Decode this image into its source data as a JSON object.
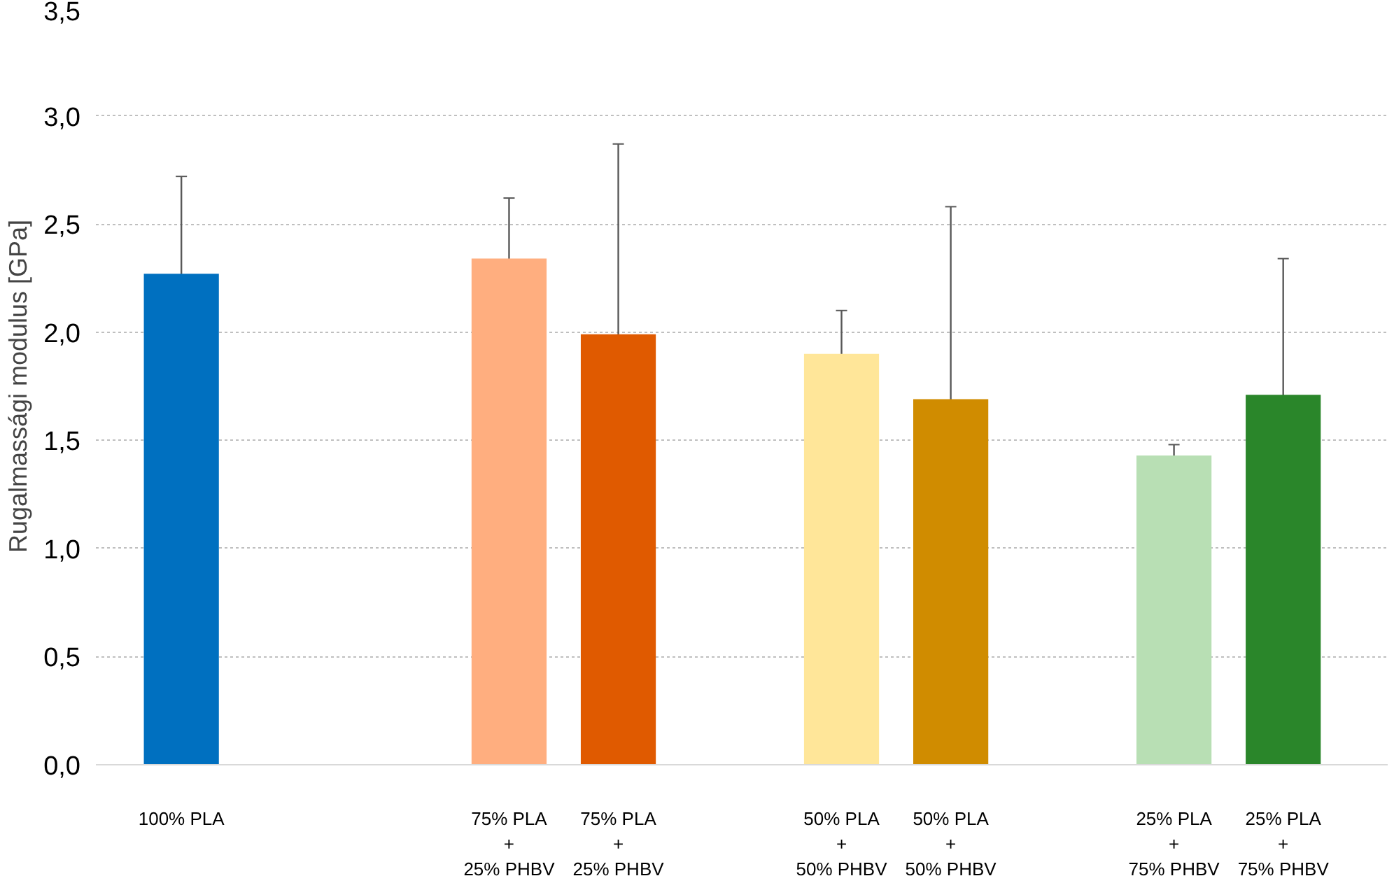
{
  "chart_data": {
    "type": "bar",
    "ylabel": "Rugalmassági modulus [GPa]",
    "categories": [
      "100% PLA",
      "75% PLA\n+\n25% PHBV",
      "75% PLA\n+\n25% PHBV",
      "50% PLA\n+\n50% PHBV",
      "50% PLA\n+\n50% PHBV",
      "25% PLA\n+\n75% PHBV",
      "25% PLA\n+\n75% PHBV"
    ],
    "values": [
      2.27,
      2.34,
      1.99,
      1.9,
      1.69,
      1.43,
      1.71
    ],
    "errors": [
      0.45,
      0.28,
      0.88,
      0.2,
      0.89,
      0.05,
      0.63
    ],
    "colors": [
      "#0070c0",
      "#ffae7f",
      "#e05a00",
      "#ffe699",
      "#d08c00",
      "#b8dfb4",
      "#2a862a"
    ],
    "ylim": [
      0,
      3.5
    ],
    "yticks": [
      {
        "value": 0,
        "label": "0,0"
      },
      {
        "value": 0.5,
        "label": "0,5"
      },
      {
        "value": 1,
        "label": "1,0"
      },
      {
        "value": 1.5,
        "label": "1,5"
      },
      {
        "value": 2,
        "label": "2,0"
      },
      {
        "value": 2.5,
        "label": "2,5"
      },
      {
        "value": 3,
        "label": "3,0"
      },
      {
        "value": 3.5,
        "label": "3,5"
      }
    ],
    "grid": "y"
  }
}
